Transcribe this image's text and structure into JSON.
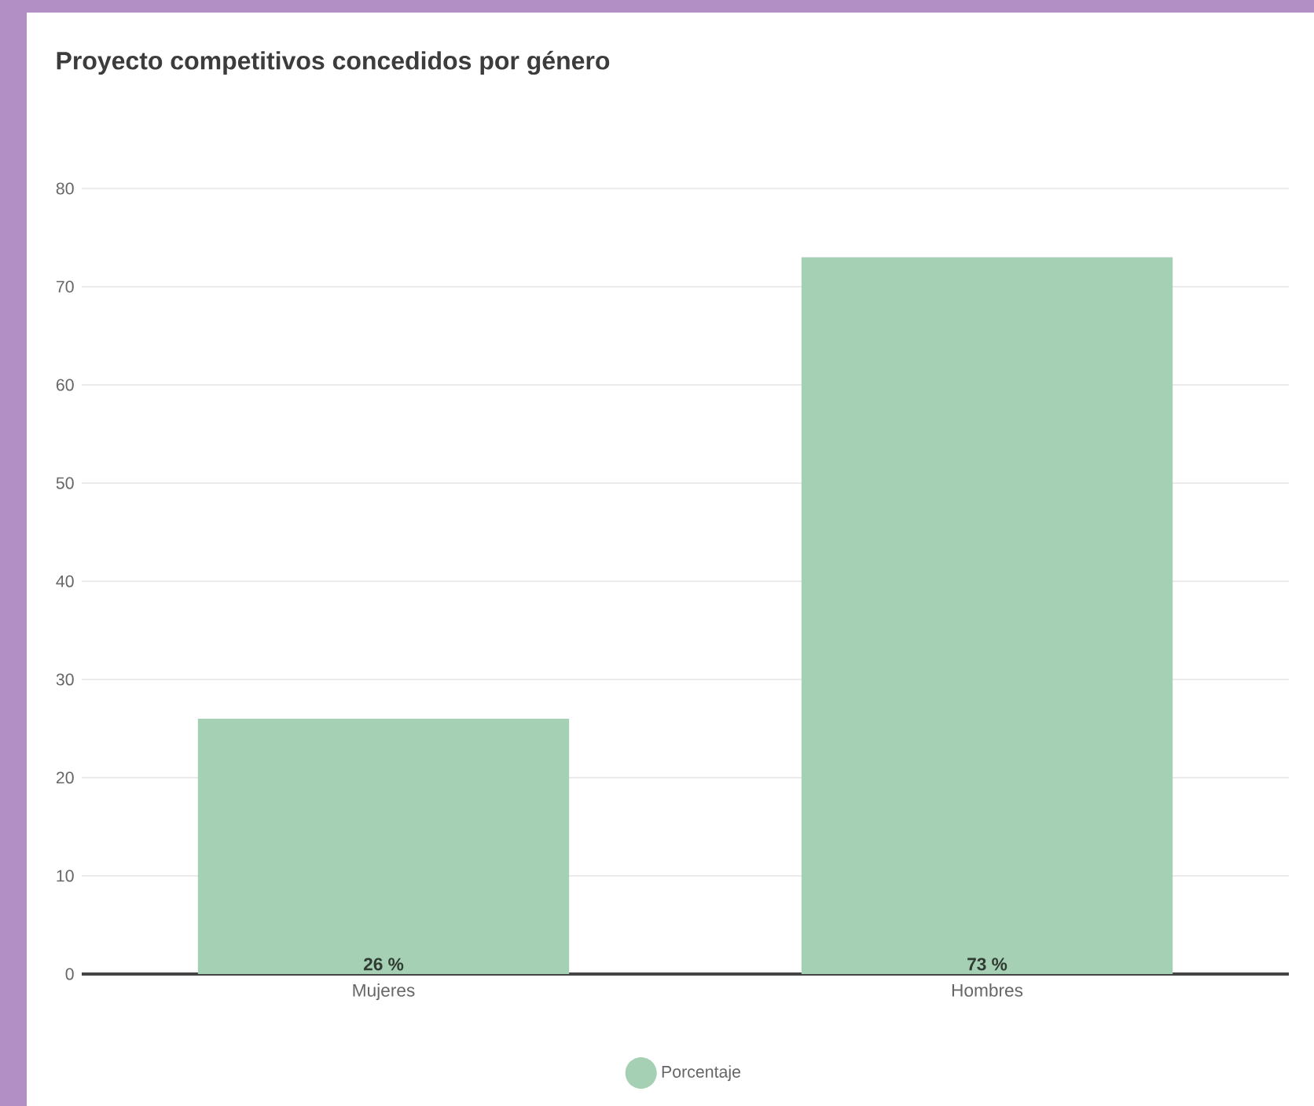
{
  "chart_data": {
    "type": "bar",
    "title": "Proyecto competitivos concedidos por género",
    "categories": [
      "Mujeres",
      "Hombres"
    ],
    "series": [
      {
        "name": "Porcentaje",
        "color": "#a5d0b3",
        "values": [
          26,
          73
        ],
        "value_labels": [
          "26 %",
          "73 %"
        ]
      }
    ],
    "ylim": [
      0,
      80
    ],
    "yticks": [
      0,
      10,
      20,
      30,
      40,
      50,
      60,
      70,
      80
    ],
    "grid": "y",
    "legend": "bottom"
  }
}
